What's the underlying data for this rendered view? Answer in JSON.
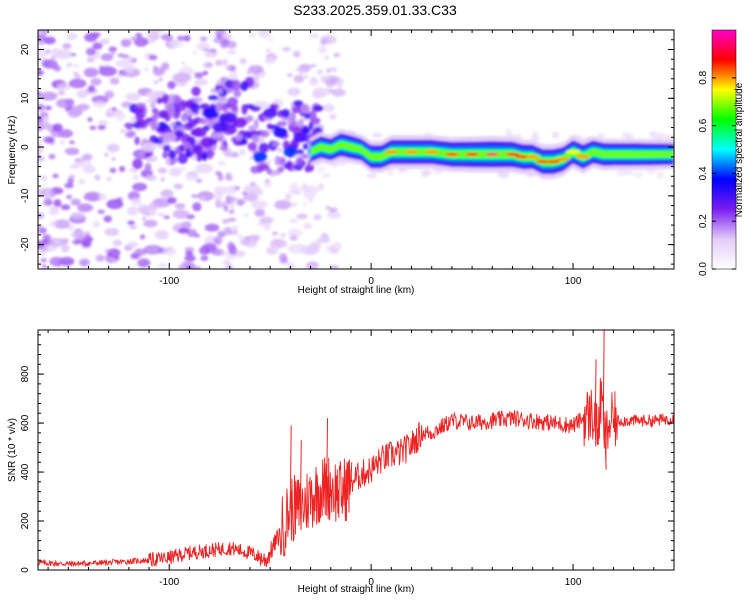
{
  "title": "S233.2025.359.01.33.C33",
  "chart_data": [
    {
      "type": "heatmap",
      "name": "spectrogram",
      "xlabel": "Height of straight line (km)",
      "ylabel": "Frequency (Hz)",
      "xlim": [
        -165,
        150
      ],
      "ylim": [
        -25,
        24
      ],
      "xticks": [
        -100,
        0,
        100
      ],
      "xtick_labels": [
        "-100",
        "0",
        "100"
      ],
      "yticks": [
        -20,
        -10,
        0,
        10,
        20
      ],
      "ytick_labels": [
        "-20",
        "-10",
        "0",
        "10",
        "20"
      ],
      "ridge": {
        "x": [
          -30,
          -25,
          -20,
          -15,
          -10,
          -5,
          0,
          5,
          10,
          20,
          30,
          40,
          50,
          60,
          70,
          75,
          80,
          85,
          90,
          95,
          100,
          105,
          110,
          115,
          120,
          130,
          140,
          150
        ],
        "freq": [
          -1.0,
          0.0,
          -0.5,
          0.5,
          0.0,
          -0.5,
          -2.0,
          -2.0,
          -1.0,
          -1.0,
          -1.0,
          -1.5,
          -1.5,
          -1.5,
          -1.5,
          -2.0,
          -2.0,
          -3.0,
          -3.0,
          -2.5,
          -1.0,
          -2.0,
          -1.0,
          -1.5,
          -1.5,
          -1.5,
          -1.5,
          -1.5
        ],
        "amplitude": [
          0.5,
          0.6,
          0.6,
          0.7,
          0.7,
          0.6,
          0.7,
          0.7,
          0.8,
          0.8,
          0.8,
          0.85,
          0.9,
          0.95,
          0.9,
          0.85,
          0.8,
          0.85,
          0.85,
          0.8,
          0.75,
          0.8,
          0.7,
          0.7,
          0.65,
          0.65,
          0.6,
          0.55
        ]
      },
      "patches": [
        {
          "x": -80,
          "freq": 7,
          "amplitude": 0.35
        },
        {
          "x": -75,
          "freq": 4,
          "amplitude": 0.3
        },
        {
          "x": -85,
          "freq": 3,
          "amplitude": 0.25
        },
        {
          "x": -70,
          "freq": 6,
          "amplitude": 0.3
        },
        {
          "x": -65,
          "freq": 5,
          "amplitude": 0.25
        },
        {
          "x": -55,
          "freq": -2,
          "amplitude": 0.4
        },
        {
          "x": -50,
          "freq": 7,
          "amplitude": 0.3
        },
        {
          "x": -45,
          "freq": 3,
          "amplitude": 0.35
        },
        {
          "x": -40,
          "freq": -1,
          "amplitude": 0.4
        },
        {
          "x": -35,
          "freq": 2,
          "amplitude": 0.3
        },
        {
          "x": -28,
          "freq": -1,
          "amplitude": 0.45
        },
        {
          "x": -100,
          "freq": 2,
          "amplitude": 0.15
        },
        {
          "x": -110,
          "freq": 0,
          "amplitude": 0.12
        }
      ],
      "colorbar": {
        "label": "Normalized spectral amplitude",
        "ticks": [
          0.0,
          0.2,
          0.4,
          0.6,
          0.8
        ],
        "tick_labels": [
          "0.0",
          "0.2",
          "0.4",
          "0.6",
          "0.8"
        ],
        "range": [
          0,
          1
        ],
        "stops": [
          "#ffffff",
          "#e3ccf8",
          "#7a1cf0",
          "#0000ff",
          "#00ffff",
          "#00ff00",
          "#ffff00",
          "#ff0000",
          "#ff00c8"
        ]
      }
    },
    {
      "type": "line",
      "name": "snr",
      "xlabel": "Height of straight line (km)",
      "ylabel": "SNR (10 * v/v)",
      "xlim": [
        -165,
        150
      ],
      "ylim": [
        0,
        980
      ],
      "xticks": [
        -100,
        0,
        100
      ],
      "xtick_labels": [
        "-100",
        "0",
        "100"
      ],
      "yticks": [
        0,
        200,
        400,
        600,
        800
      ],
      "ytick_labels": [
        "0",
        "200",
        "400",
        "600",
        "800"
      ],
      "color": "#ee2222",
      "series": [
        {
          "name": "SNR",
          "x": [
            -165,
            -150,
            -130,
            -110,
            -100,
            -90,
            -80,
            -70,
            -60,
            -52,
            -45,
            -40,
            -35,
            -30,
            -25,
            -20,
            -15,
            -10,
            -5,
            0,
            5,
            10,
            15,
            20,
            25,
            30,
            40,
            50,
            60,
            70,
            80,
            90,
            100,
            105,
            110,
            112,
            114,
            116,
            118,
            120,
            130,
            140,
            150
          ],
          "y": [
            30,
            25,
            30,
            40,
            50,
            70,
            80,
            90,
            70,
            40,
            150,
            250,
            250,
            300,
            330,
            340,
            310,
            360,
            390,
            410,
            450,
            470,
            480,
            510,
            560,
            560,
            610,
            600,
            610,
            620,
            610,
            600,
            590,
            620,
            640,
            560,
            700,
            520,
            600,
            610,
            610,
            610,
            620
          ]
        }
      ],
      "spikes": [
        {
          "x": -40,
          "y": 590
        },
        {
          "x": -35,
          "y": 530
        },
        {
          "x": -22,
          "y": 620
        },
        {
          "x": -10,
          "y": 440
        },
        {
          "x": 115,
          "y": 980
        },
        {
          "x": 116,
          "y": 410
        },
        {
          "x": 111,
          "y": 860
        }
      ]
    }
  ]
}
